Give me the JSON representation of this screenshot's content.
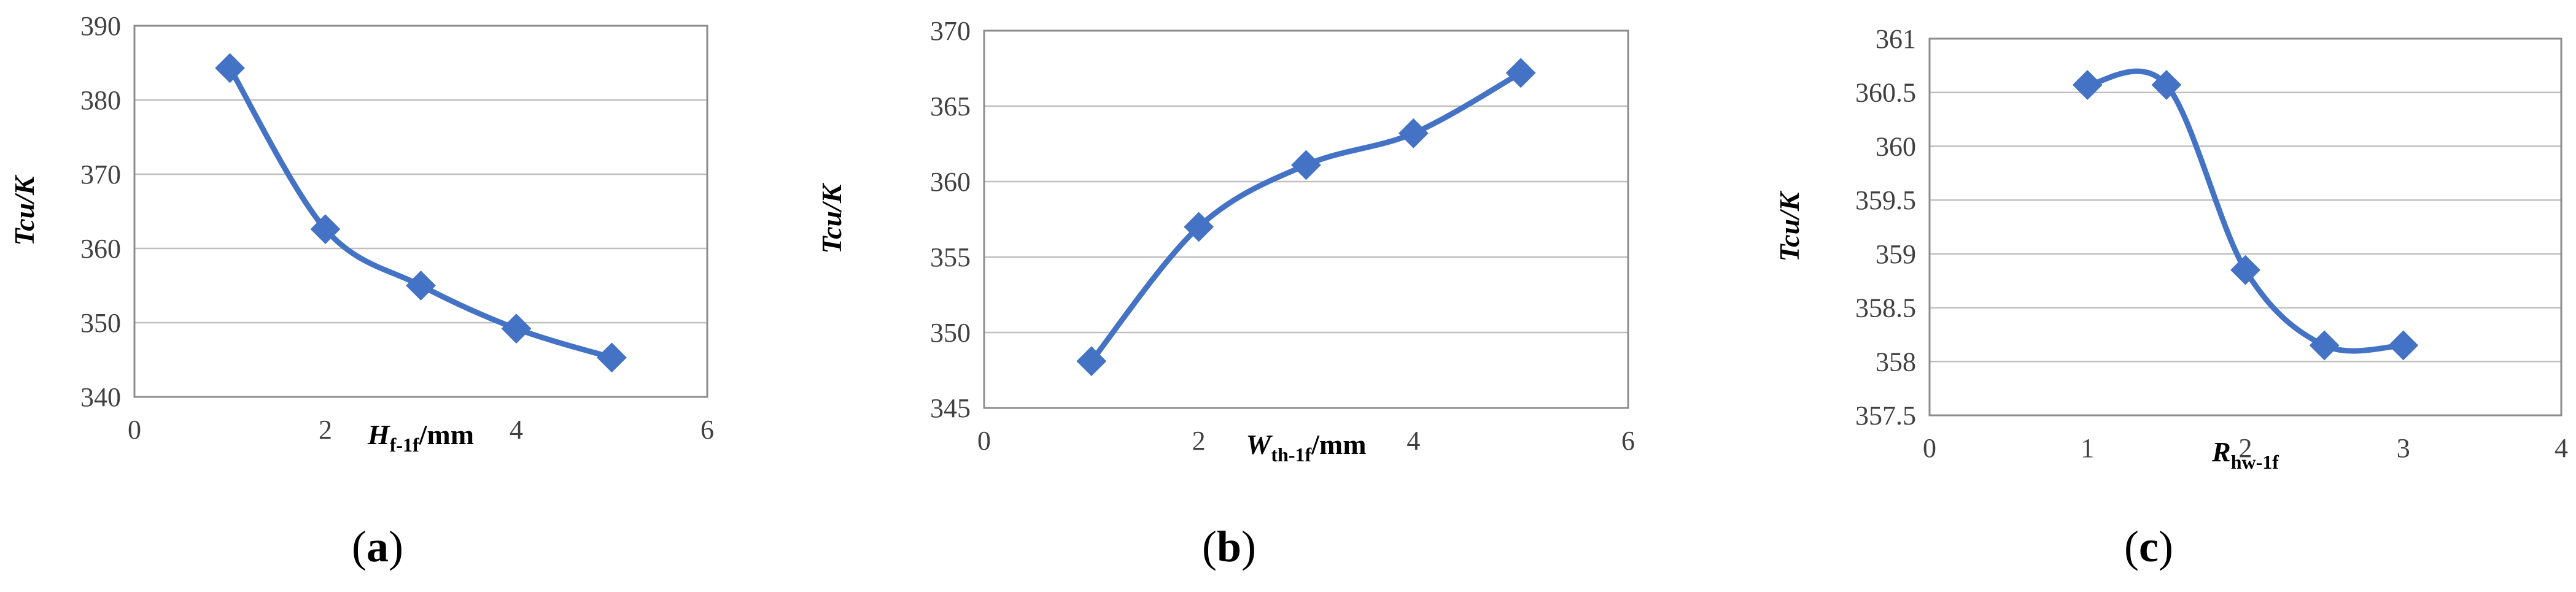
{
  "charts": [
    {
      "type": "line",
      "panel_label": "a",
      "ylabel": "Tcu/K",
      "xlabel_main": "H",
      "xlabel_sub": "f-1f",
      "xlabel_unit": "/mm",
      "xlim": [
        0,
        6
      ],
      "ylim": [
        340,
        390
      ],
      "xticks": [
        0,
        2,
        4,
        6
      ],
      "yticks": [
        340,
        350,
        360,
        370,
        380,
        390
      ],
      "x": [
        1,
        2,
        3,
        4,
        5
      ],
      "y": [
        384.3,
        362.6,
        355.0,
        349.2,
        345.3
      ],
      "color": "#4472C4"
    },
    {
      "type": "line",
      "panel_label": "b",
      "ylabel": "Tcu/K",
      "xlabel_main": "W",
      "xlabel_sub": "th-1f",
      "xlabel_unit": "/mm",
      "xlim": [
        0,
        6
      ],
      "ylim": [
        345,
        370
      ],
      "xticks": [
        0,
        2,
        4,
        6
      ],
      "yticks": [
        345,
        350,
        355,
        360,
        365,
        370
      ],
      "x": [
        1,
        2,
        3,
        4,
        5
      ],
      "y": [
        348.1,
        357.0,
        361.1,
        363.2,
        367.2
      ],
      "color": "#4472C4"
    },
    {
      "type": "line",
      "panel_label": "c",
      "ylabel": "Tcu/K",
      "xlabel_main": "R",
      "xlabel_sub": "hw-1f",
      "xlabel_unit": "",
      "xlim": [
        0,
        4
      ],
      "ylim": [
        357.5,
        361
      ],
      "xticks": [
        0,
        1,
        2,
        3,
        4
      ],
      "yticks": [
        357.5,
        358,
        358.5,
        359,
        359.5,
        360,
        360.5,
        361
      ],
      "x": [
        1,
        1.5,
        2,
        2.5,
        3
      ],
      "y": [
        360.57,
        360.57,
        358.85,
        358.15,
        358.15
      ],
      "color": "#4472C4"
    }
  ]
}
